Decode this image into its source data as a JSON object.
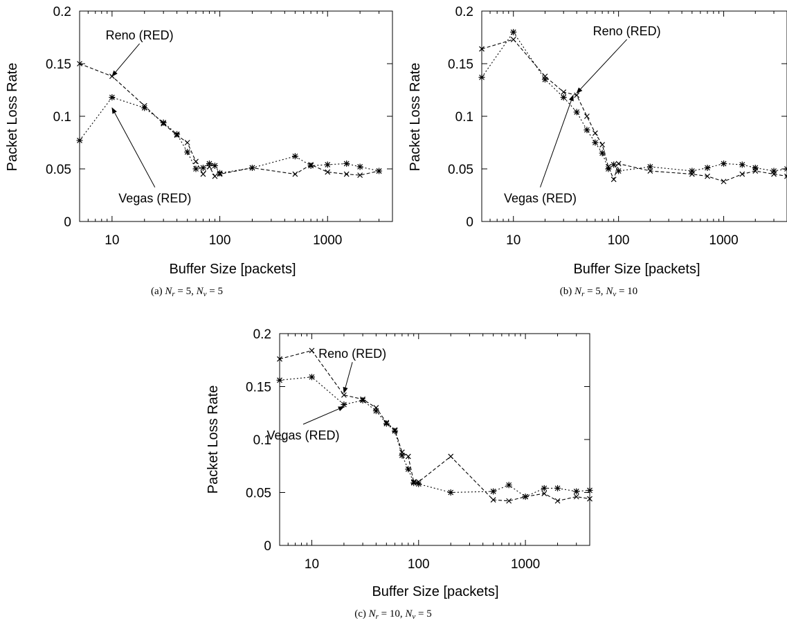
{
  "chart_data": [
    {
      "type": "line",
      "caption": "(a) N_r = 5, N_v = 5",
      "caption_parts": {
        "prefix": "(a) ",
        "v1_sym": "N",
        "v1_sub": "r",
        "v1_val": " = 5, ",
        "v2_sym": "N",
        "v2_sub": "v",
        "v2_val": " = 5"
      },
      "xlabel": "Buffer Size [packets]",
      "ylabel": "Packet Loss Rate",
      "xscale": "log",
      "xlim": [
        5,
        4000
      ],
      "ylim": [
        0,
        0.2
      ],
      "xticks": [
        10,
        100,
        1000
      ],
      "xtick_labels": [
        "10",
        "100",
        "1000"
      ],
      "yticks": [
        0,
        0.05,
        0.1,
        0.15,
        0.2
      ],
      "ytick_labels": [
        "0",
        "0.05",
        "0.1",
        "0.15",
        "0.2"
      ],
      "series": [
        {
          "name": "Reno (RED)",
          "marker": "x",
          "dash": "5,3",
          "x": [
            5,
            10,
            20,
            30,
            40,
            50,
            60,
            70,
            80,
            90,
            100,
            200,
            500,
            700,
            1000,
            1500,
            2000,
            3000
          ],
          "y": [
            0.15,
            0.138,
            0.11,
            0.093,
            0.082,
            0.075,
            0.057,
            0.045,
            0.052,
            0.043,
            0.045,
            0.051,
            0.045,
            0.054,
            0.047,
            0.045,
            0.044,
            0.048
          ]
        },
        {
          "name": "Vegas (RED)",
          "marker": "star",
          "dash": "2,3",
          "x": [
            5,
            10,
            20,
            30,
            40,
            50,
            60,
            70,
            80,
            90,
            100,
            200,
            500,
            700,
            1000,
            1500,
            2000,
            3000
          ],
          "y": [
            0.077,
            0.118,
            0.108,
            0.094,
            0.083,
            0.066,
            0.05,
            0.051,
            0.055,
            0.053,
            0.046,
            0.051,
            0.062,
            0.053,
            0.054,
            0.055,
            0.052,
            0.048
          ]
        }
      ],
      "annotations": [
        {
          "text": "Reno (RED)",
          "text_at": [
            18,
            0.173
          ],
          "arrow_to": [
            10,
            0.138
          ]
        },
        {
          "text": "Vegas (RED)",
          "text_at": [
            25,
            0.018
          ],
          "arrow_to": [
            10,
            0.108
          ]
        }
      ]
    },
    {
      "type": "line",
      "caption": "(b) N_r = 5, N_v = 10",
      "caption_parts": {
        "prefix": "(b) ",
        "v1_sym": "N",
        "v1_sub": "r",
        "v1_val": " = 5, ",
        "v2_sym": "N",
        "v2_sub": "v",
        "v2_val": " = 10"
      },
      "xlabel": "Buffer Size [packets]",
      "ylabel": "Packet Loss Rate",
      "xscale": "log",
      "xlim": [
        5,
        4000
      ],
      "ylim": [
        0,
        0.2
      ],
      "xticks": [
        10,
        100,
        1000
      ],
      "xtick_labels": [
        "10",
        "100",
        "1000"
      ],
      "yticks": [
        0,
        0.05,
        0.1,
        0.15,
        0.2
      ],
      "ytick_labels": [
        "0",
        "0.05",
        "0.1",
        "0.15",
        "0.2"
      ],
      "series": [
        {
          "name": "Reno (RED)",
          "marker": "x",
          "dash": "5,3",
          "x": [
            5,
            10,
            20,
            30,
            40,
            50,
            60,
            70,
            80,
            90,
            100,
            200,
            500,
            700,
            1000,
            1500,
            2000,
            3000,
            4000
          ],
          "y": [
            0.164,
            0.173,
            0.138,
            0.123,
            0.12,
            0.1,
            0.084,
            0.073,
            0.052,
            0.04,
            0.055,
            0.048,
            0.045,
            0.043,
            0.038,
            0.045,
            0.048,
            0.045,
            0.043
          ]
        },
        {
          "name": "Vegas (RED)",
          "marker": "star",
          "dash": "2,3",
          "x": [
            5,
            10,
            20,
            30,
            40,
            50,
            60,
            70,
            80,
            90,
            100,
            200,
            500,
            700,
            1000,
            1500,
            2000,
            3000,
            4000
          ],
          "y": [
            0.137,
            0.18,
            0.135,
            0.118,
            0.104,
            0.087,
            0.075,
            0.065,
            0.05,
            0.054,
            0.048,
            0.052,
            0.048,
            0.051,
            0.055,
            0.054,
            0.051,
            0.048,
            0.05
          ]
        }
      ],
      "annotations": [
        {
          "text": "Reno (RED)",
          "text_at": [
            120,
            0.177
          ],
          "arrow_to": [
            40,
            0.122
          ]
        },
        {
          "text": "Vegas (RED)",
          "text_at": [
            18,
            0.018
          ],
          "arrow_to": [
            37,
            0.12
          ]
        }
      ]
    },
    {
      "type": "line",
      "caption": "(c) N_r = 10, N_v = 5",
      "caption_parts": {
        "prefix": "(c) ",
        "v1_sym": "N",
        "v1_sub": "r",
        "v1_val": " = 10, ",
        "v2_sym": "N",
        "v2_sub": "v",
        "v2_val": " = 5"
      },
      "xlabel": "Buffer Size [packets]",
      "ylabel": "Packet Loss Rate",
      "xscale": "log",
      "xlim": [
        5,
        4000
      ],
      "ylim": [
        0,
        0.2
      ],
      "xticks": [
        10,
        100,
        1000
      ],
      "xtick_labels": [
        "10",
        "100",
        "1000"
      ],
      "yticks": [
        0,
        0.05,
        0.1,
        0.15,
        0.2
      ],
      "ytick_labels": [
        "0",
        "0.05",
        "0.1",
        "0.15",
        "0.2"
      ],
      "series": [
        {
          "name": "Reno (RED)",
          "marker": "x",
          "dash": "5,3",
          "x": [
            5,
            10,
            20,
            30,
            40,
            50,
            60,
            70,
            80,
            90,
            100,
            200,
            500,
            700,
            1000,
            1500,
            2000,
            3000,
            4000
          ],
          "y": [
            0.176,
            0.184,
            0.142,
            0.138,
            0.13,
            0.116,
            0.109,
            0.088,
            0.084,
            0.06,
            0.06,
            0.084,
            0.043,
            0.042,
            0.046,
            0.049,
            0.042,
            0.046,
            0.044
          ]
        },
        {
          "name": "Vegas (RED)",
          "marker": "star",
          "dash": "2,3",
          "x": [
            5,
            10,
            20,
            30,
            40,
            50,
            60,
            70,
            80,
            90,
            100,
            200,
            500,
            700,
            1000,
            1500,
            2000,
            3000,
            4000
          ],
          "y": [
            0.156,
            0.159,
            0.133,
            0.137,
            0.127,
            0.115,
            0.108,
            0.085,
            0.072,
            0.059,
            0.058,
            0.05,
            0.051,
            0.057,
            0.046,
            0.054,
            0.054,
            0.051,
            0.052
          ]
        }
      ],
      "annotations": [
        {
          "text": "Reno (RED)",
          "text_at": [
            24,
            0.177
          ],
          "arrow_to": [
            20,
            0.144
          ]
        },
        {
          "text": "Vegas (RED)",
          "text_at": [
            8.3,
            0.1
          ],
          "arrow_to": [
            20,
            0.131
          ]
        }
      ]
    }
  ]
}
